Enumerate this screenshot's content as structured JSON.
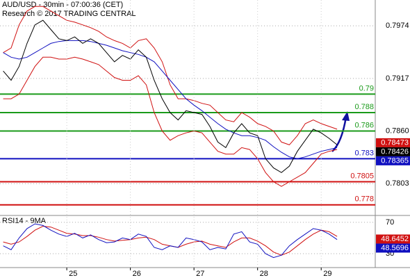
{
  "chart_data": [
    {
      "type": "line",
      "title": "AUD/USD - 30min - 07:00:36 (CET)",
      "subtitle": "Research © 2017 TRADING CENTRAL",
      "x": [
        24.0,
        24.125,
        24.25,
        24.375,
        24.5,
        24.625,
        24.75,
        24.875,
        25.0,
        25.125,
        25.25,
        25.375,
        25.5,
        25.625,
        25.75,
        25.875,
        26.0,
        26.125,
        26.25,
        26.375,
        26.5,
        26.625,
        26.75,
        26.875,
        27.0,
        27.125,
        27.25,
        27.375,
        27.5,
        27.625,
        27.75,
        27.875,
        28.0,
        28.125,
        28.25,
        28.375,
        28.5,
        28.625,
        28.75,
        28.875,
        29.0,
        29.125,
        29.25
      ],
      "xlim": [
        23.95,
        29.85
      ],
      "ylim": [
        0.777,
        0.8002
      ],
      "yticks": [
        0.7974,
        0.7917,
        {
          "value": 0.786,
          "label": "0.7860"
        },
        0.7803
      ],
      "grid": true,
      "series": [
        {
          "color": "#d01010",
          "values": [
            0.7945,
            0.795,
            0.7975,
            0.799,
            0.7995,
            0.7995,
            0.799,
            0.7985,
            0.798,
            0.7978,
            0.7975,
            0.7972,
            0.7968,
            0.7962,
            0.7958,
            0.7955,
            0.795,
            0.7958,
            0.796,
            0.795,
            0.7935,
            0.791,
            0.7895,
            0.7895,
            0.7893,
            0.789,
            0.7888,
            0.788,
            0.7872,
            0.787,
            0.788,
            0.7875,
            0.7868,
            0.7865,
            0.786,
            0.7848,
            0.7845,
            0.7855,
            0.7868,
            0.7872,
            0.7868,
            0.7865,
            0.7862
          ]
        },
        {
          "color": "#d01010",
          "values": [
            0.7895,
            0.7895,
            0.79,
            0.7915,
            0.793,
            0.794,
            0.794,
            0.7938,
            0.7938,
            0.794,
            0.7938,
            0.7935,
            0.7932,
            0.7925,
            0.7918,
            0.7915,
            0.7915,
            0.792,
            0.791,
            0.788,
            0.786,
            0.785,
            0.7855,
            0.7858,
            0.786,
            0.7858,
            0.7848,
            0.7838,
            0.7835,
            0.7835,
            0.7842,
            0.784,
            0.783,
            0.7815,
            0.7805,
            0.78,
            0.7805,
            0.781,
            0.7815,
            0.7825,
            0.7835,
            0.7838,
            0.784
          ]
        },
        {
          "color": "#1010c0",
          "values": [
            0.7945,
            0.794,
            0.7938,
            0.794,
            0.7945,
            0.795,
            0.7955,
            0.7957,
            0.7958,
            0.7958,
            0.7958,
            0.7957,
            0.7955,
            0.7953,
            0.795,
            0.7947,
            0.7945,
            0.7943,
            0.794,
            0.7935,
            0.7925,
            0.7915,
            0.7905,
            0.7895,
            0.7888,
            0.7882,
            0.7875,
            0.7868,
            0.7862,
            0.7858,
            0.7855,
            0.7855,
            0.7853,
            0.785,
            0.7843,
            0.7837,
            0.7832,
            0.783,
            0.7832,
            0.7835,
            0.7838,
            0.784,
            0.7842
          ]
        },
        {
          "color": "#000000",
          "values": [
            0.7925,
            0.7915,
            0.793,
            0.7955,
            0.7975,
            0.798,
            0.797,
            0.796,
            0.7958,
            0.7962,
            0.7955,
            0.796,
            0.7955,
            0.7945,
            0.7935,
            0.7942,
            0.7938,
            0.7948,
            0.794,
            0.7915,
            0.7895,
            0.788,
            0.7872,
            0.7882,
            0.788,
            0.7878,
            0.7865,
            0.7848,
            0.7842,
            0.7858,
            0.7868,
            0.7858,
            0.7855,
            0.783,
            0.782,
            0.7815,
            0.7822,
            0.7838,
            0.785,
            0.7862,
            0.7858,
            0.7852,
            0.7845
          ]
        }
      ],
      "levels": [
        {
          "value": 0.79,
          "color": "#1a9a1a"
        },
        {
          "value": 0.788,
          "color": "#1a9a1a"
        },
        {
          "value": 0.786,
          "color": "#1a9a1a"
        },
        {
          "value": 0.783,
          "color": "#1010c0"
        },
        {
          "value": 0.7805,
          "color": "#d01010"
        },
        {
          "value": 0.778,
          "color": "#d01010"
        }
      ],
      "markers": [
        {
          "value": 0.78473,
          "color": "#d01010"
        },
        {
          "value": 0.78426,
          "color": "#000000"
        },
        {
          "value": 0.78365,
          "color": "#1010c0"
        }
      ]
    },
    {
      "type": "line",
      "title": "RSI14 - 9MA",
      "ylim": [
        14,
        77
      ],
      "yticks": [
        70,
        30
      ],
      "xticks": [
        25,
        26,
        27,
        28,
        29
      ],
      "grid": true,
      "series": [
        {
          "color": "#d01010",
          "values": [
            45,
            42,
            45,
            52,
            60,
            65,
            64,
            60,
            56,
            55,
            53,
            53,
            51,
            48,
            46,
            47,
            48,
            50,
            51,
            48,
            42,
            40,
            38,
            42,
            45,
            46,
            42,
            40,
            38,
            45,
            50,
            50,
            46,
            40,
            32,
            28,
            32,
            40,
            48,
            55,
            60,
            58,
            52
          ]
        },
        {
          "color": "#1010c0",
          "values": [
            40,
            35,
            50,
            62,
            68,
            66,
            60,
            55,
            52,
            56,
            50,
            54,
            48,
            44,
            45,
            50,
            48,
            55,
            52,
            38,
            35,
            40,
            38,
            50,
            48,
            45,
            35,
            38,
            36,
            55,
            58,
            45,
            42,
            30,
            25,
            28,
            40,
            48,
            55,
            62,
            60,
            55,
            48
          ]
        }
      ],
      "markers": [
        {
          "value": 48.6452,
          "color": "#d01010"
        },
        {
          "value": 48.5696,
          "color": "#1010c0"
        }
      ]
    }
  ]
}
